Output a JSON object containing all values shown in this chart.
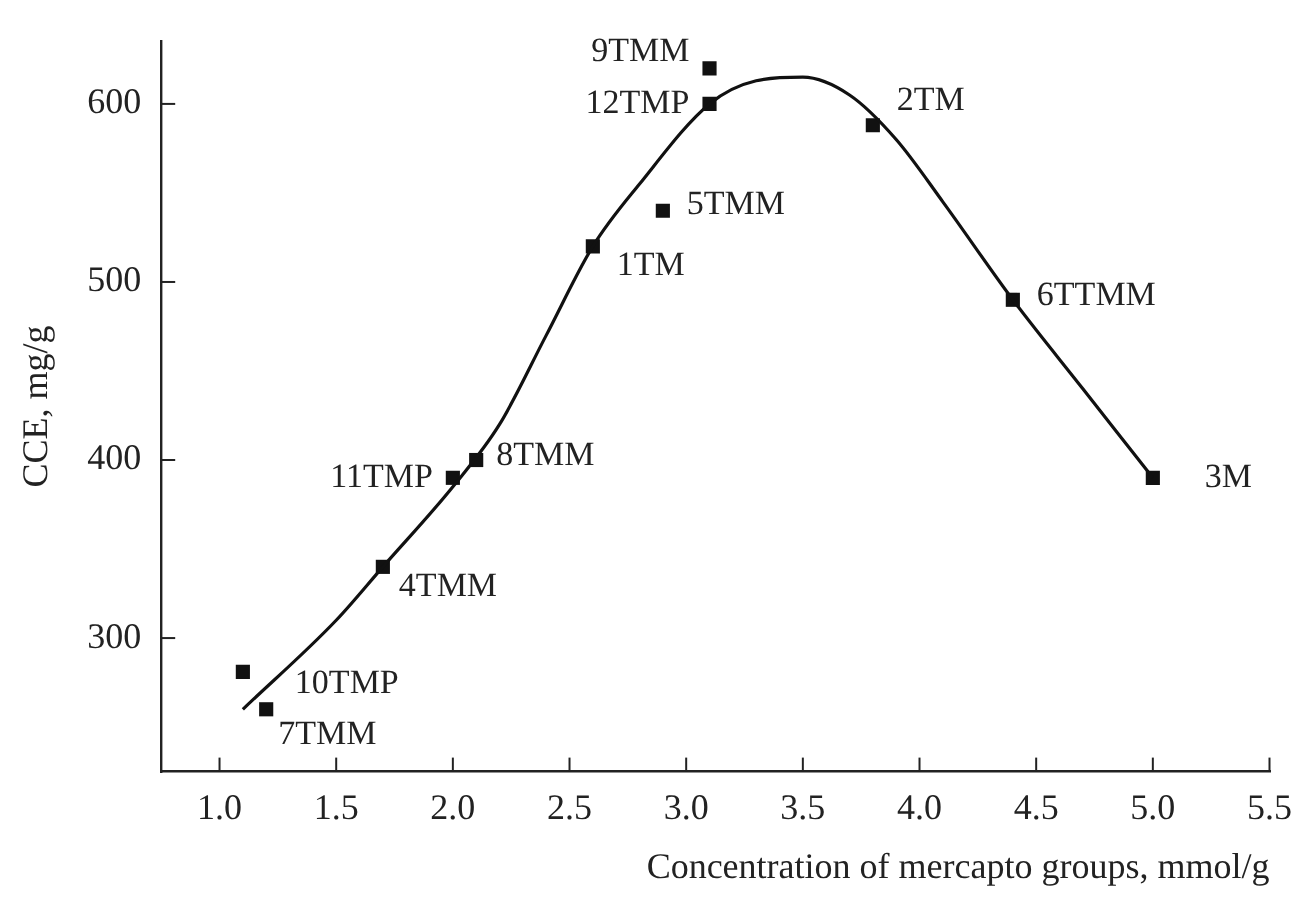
{
  "chart_data": {
    "type": "scatter",
    "xlabel": "Concentration of mercapto groups, mmol/g",
    "ylabel": "CCE, mg/g",
    "xlim": [
      0.75,
      5.5
    ],
    "ylim": [
      225,
      635
    ],
    "xticks": [
      {
        "value": 1,
        "label": "1.0"
      },
      {
        "value": 1.5,
        "label": "1.5"
      },
      {
        "value": 2,
        "label": "2.0"
      },
      {
        "value": 2.5,
        "label": "2.5"
      },
      {
        "value": 3,
        "label": "3.0"
      },
      {
        "value": 3.5,
        "label": "3.5"
      },
      {
        "value": 4,
        "label": "4.0"
      },
      {
        "value": 4.5,
        "label": "4.5"
      },
      {
        "value": 5,
        "label": "5.0"
      },
      {
        "value": 5.5,
        "label": "5.5"
      }
    ],
    "yticks": [
      300,
      400,
      500,
      600
    ],
    "grid": false,
    "legend": false,
    "marker": "square",
    "series": [
      {
        "type": "scatter",
        "color": "#111111",
        "x": [
          1.1,
          1.2,
          1.7,
          2.0,
          2.1,
          2.6,
          2.9,
          3.1,
          3.1,
          3.8,
          4.4,
          5.0
        ],
        "values": [
          281,
          260,
          340,
          390,
          400,
          520,
          540,
          600,
          620,
          588,
          490,
          390
        ]
      },
      {
        "type": "line",
        "color": "#111111",
        "marker": "none",
        "line_style": "solid",
        "x": [
          1.1,
          1.5,
          1.7,
          2.0,
          2.2,
          2.4,
          2.6,
          2.8,
          3.1,
          3.3,
          3.5,
          3.7,
          3.9,
          4.1,
          4.4,
          4.7,
          5.0
        ],
        "values": [
          260,
          310,
          340,
          385,
          420,
          470,
          520,
          555,
          600,
          613,
          615,
          605,
          580,
          545,
          490,
          440,
          390
        ]
      }
    ],
    "annotations": [
      {
        "text": "10TMP",
        "x": 1.1,
        "y": 281
      },
      {
        "text": "7TMM",
        "x": 1.2,
        "y": 260
      },
      {
        "text": "4TMM",
        "x": 1.7,
        "y": 340
      },
      {
        "text": "11TMP",
        "x": 2.0,
        "y": 390
      },
      {
        "text": "8TMM",
        "x": 2.1,
        "y": 400
      },
      {
        "text": "1TM",
        "x": 2.6,
        "y": 520
      },
      {
        "text": "5TMM",
        "x": 2.9,
        "y": 540
      },
      {
        "text": "12TMP",
        "x": 3.1,
        "y": 600
      },
      {
        "text": "9TMM",
        "x": 3.1,
        "y": 620
      },
      {
        "text": "2TM",
        "x": 3.8,
        "y": 588
      },
      {
        "text": "6TTMM",
        "x": 4.4,
        "y": 490
      },
      {
        "text": "3M",
        "x": 5.0,
        "y": 390
      }
    ]
  }
}
